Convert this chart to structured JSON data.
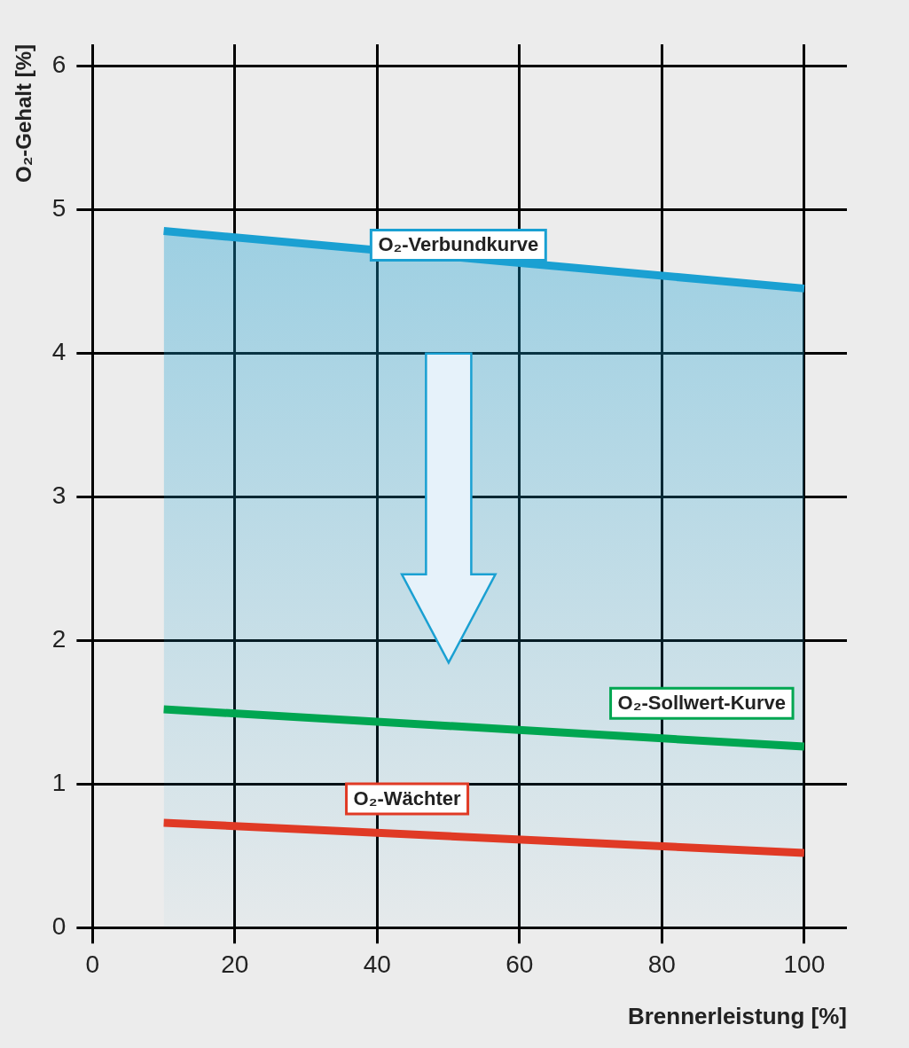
{
  "chart_data": {
    "type": "line",
    "xlabel": "Brennerleistung [%]",
    "ylabel": "O₂-Gehalt [%]",
    "x": [
      10,
      100
    ],
    "xlim": [
      0,
      106
    ],
    "ylim": [
      0,
      6.15
    ],
    "xticks": [
      0,
      20,
      40,
      60,
      80,
      100
    ],
    "yticks": [
      0,
      1,
      2,
      3,
      4,
      5,
      6
    ],
    "grid": true,
    "legend": false,
    "marker": "none",
    "line_style": "solid",
    "series": [
      {
        "name": "O₂-Verbundkurve",
        "type": "area",
        "color": "#1aa0d2",
        "values": [
          4.85,
          4.45
        ]
      },
      {
        "name": "O₂-Sollwert-Kurve",
        "color": "#00a651",
        "values": [
          1.52,
          1.26
        ]
      },
      {
        "name": "O₂-Wächter",
        "color": "#e03a25",
        "values": [
          0.73,
          0.52
        ]
      }
    ]
  }
}
